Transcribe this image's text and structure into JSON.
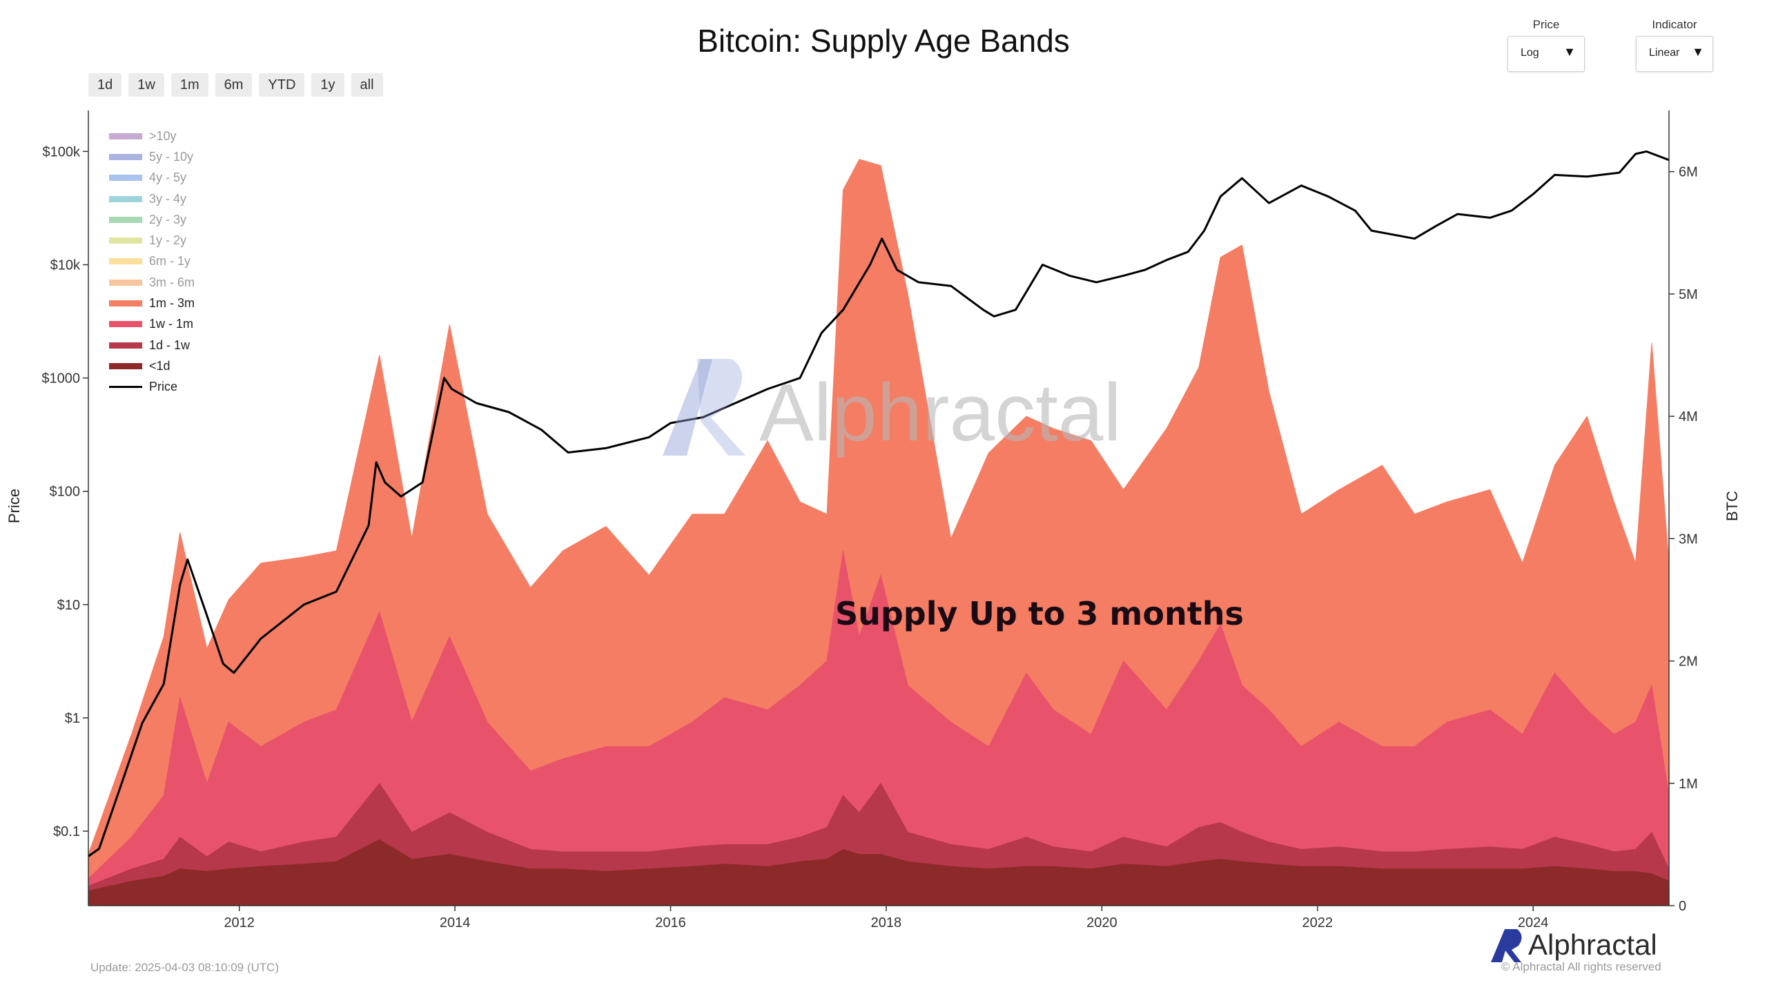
{
  "title": "Bitcoin: Supply Age Bands",
  "range_buttons": [
    "1d",
    "1w",
    "1m",
    "6m",
    "YTD",
    "1y",
    "all"
  ],
  "controls": {
    "price": {
      "label": "Price",
      "value": "Log"
    },
    "indicator": {
      "label": "Indicator",
      "value": "Linear"
    }
  },
  "legend": [
    {
      "label": ">10y",
      "color": "#c8a9d2"
    },
    {
      "label": "5y - 10y",
      "color": "#aab2e0"
    },
    {
      "label": "4y - 5y",
      "color": "#a8c4ee"
    },
    {
      "label": "3y - 4y",
      "color": "#9ed4dc"
    },
    {
      "label": "2y - 3y",
      "color": "#a8d8b4"
    },
    {
      "label": "1y - 2y",
      "color": "#e0e6a0"
    },
    {
      "label": "6m - 1y",
      "color": "#fbdf9a"
    },
    {
      "label": "3m - 6m",
      "color": "#f8c69e"
    },
    {
      "label": "1m - 3m",
      "color": "#f47d63"
    },
    {
      "label": "1w - 1m",
      "color": "#e8536b"
    },
    {
      "label": "1d - 1w",
      "color": "#b8384b"
    },
    {
      "label": "<1d",
      "color": "#8c2a2a"
    },
    {
      "label": "Price",
      "color": "#000000"
    }
  ],
  "annotation": "Supply Up to 3 months",
  "watermark_text": "Alphractal",
  "footer": {
    "update": "Update: 2025-04-03 08:10:09 (UTC)",
    "brand": "Alphractal",
    "copyright": "© Alphractal All rights reserved"
  },
  "chart_data": {
    "type": "area",
    "title": "Bitcoin: Supply Age Bands",
    "xlabel": "",
    "ylabel_left": "Price",
    "ylabel_right": "BTC",
    "x_range": [
      2010.6,
      2025.26
    ],
    "x_ticks": [
      2012,
      2014,
      2016,
      2018,
      2020,
      2022,
      2024
    ],
    "y_right_range": [
      0,
      6500000
    ],
    "y_right_ticks": [
      {
        "value": 0,
        "label": "0"
      },
      {
        "value": 1000000,
        "label": "1M"
      },
      {
        "value": 2000000,
        "label": "2M"
      },
      {
        "value": 3000000,
        "label": "3M"
      },
      {
        "value": 4000000,
        "label": "4M"
      },
      {
        "value": 5000000,
        "label": "5M"
      },
      {
        "value": 6000000,
        "label": "6M"
      }
    ],
    "y_left_scale": "log",
    "y_left_range": [
      0.022,
      230000
    ],
    "y_left_ticks": [
      {
        "value": 0.1,
        "label": "$0.1"
      },
      {
        "value": 1,
        "label": "$1"
      },
      {
        "value": 10,
        "label": "$10"
      },
      {
        "value": 100,
        "label": "$100"
      },
      {
        "value": 1000,
        "label": "$1000"
      },
      {
        "value": 10000,
        "label": "$10k"
      },
      {
        "value": 100000,
        "label": "$100k"
      }
    ],
    "x": [
      2010.6,
      2011.0,
      2011.3,
      2011.45,
      2011.7,
      2011.9,
      2012.2,
      2012.6,
      2012.9,
      2013.3,
      2013.6,
      2013.95,
      2014.3,
      2014.7,
      2015.0,
      2015.4,
      2015.8,
      2016.2,
      2016.5,
      2016.9,
      2017.2,
      2017.45,
      2017.6,
      2017.75,
      2017.95,
      2018.2,
      2018.6,
      2018.95,
      2019.3,
      2019.55,
      2019.9,
      2020.2,
      2020.6,
      2020.9,
      2021.1,
      2021.3,
      2021.55,
      2021.85,
      2022.2,
      2022.6,
      2022.9,
      2023.2,
      2023.6,
      2023.9,
      2024.2,
      2024.5,
      2024.75,
      2024.95,
      2025.1,
      2025.26
    ],
    "series": [
      {
        "name": "<1d",
        "values": [
          120000,
          200000,
          240000,
          300000,
          280000,
          300000,
          320000,
          340000,
          360000,
          540000,
          380000,
          420000,
          360000,
          300000,
          300000,
          280000,
          300000,
          320000,
          340000,
          320000,
          360000,
          380000,
          460000,
          420000,
          420000,
          360000,
          320000,
          300000,
          320000,
          320000,
          300000,
          340000,
          320000,
          360000,
          380000,
          360000,
          340000,
          320000,
          320000,
          300000,
          300000,
          300000,
          300000,
          300000,
          320000,
          300000,
          280000,
          280000,
          260000,
          200000
        ]
      },
      {
        "name": "1d - 1w",
        "values": [
          160000,
          300000,
          380000,
          560000,
          400000,
          520000,
          440000,
          520000,
          560000,
          1000000,
          600000,
          760000,
          600000,
          460000,
          440000,
          440000,
          440000,
          480000,
          500000,
          500000,
          560000,
          640000,
          900000,
          760000,
          1000000,
          600000,
          500000,
          460000,
          560000,
          480000,
          440000,
          560000,
          480000,
          640000,
          680000,
          600000,
          520000,
          460000,
          480000,
          440000,
          440000,
          460000,
          480000,
          460000,
          560000,
          500000,
          440000,
          460000,
          600000,
          300000
        ]
      },
      {
        "name": "1w - 1m",
        "values": [
          220000,
          560000,
          900000,
          1700000,
          1000000,
          1500000,
          1300000,
          1500000,
          1600000,
          2400000,
          1500000,
          2200000,
          1500000,
          1100000,
          1200000,
          1300000,
          1300000,
          1500000,
          1700000,
          1600000,
          1800000,
          2000000,
          2900000,
          2200000,
          2700000,
          1800000,
          1500000,
          1300000,
          1900000,
          1600000,
          1400000,
          2000000,
          1600000,
          2000000,
          2300000,
          1800000,
          1600000,
          1300000,
          1500000,
          1300000,
          1300000,
          1500000,
          1600000,
          1400000,
          1900000,
          1600000,
          1400000,
          1500000,
          1800000,
          900000
        ]
      },
      {
        "name": "1m - 3m",
        "values": [
          420000,
          1400000,
          2200000,
          3050000,
          2100000,
          2500000,
          2800000,
          2850000,
          2900000,
          4500000,
          3000000,
          4750000,
          3200000,
          2600000,
          2900000,
          3100000,
          2700000,
          3200000,
          3200000,
          3800000,
          3300000,
          3200000,
          5850000,
          6100000,
          6050000,
          5000000,
          3000000,
          3700000,
          4000000,
          3900000,
          3800000,
          3400000,
          3900000,
          4400000,
          5300000,
          5400000,
          4200000,
          3200000,
          3400000,
          3600000,
          3200000,
          3300000,
          3400000,
          2800000,
          3600000,
          4000000,
          3300000,
          2800000,
          4600000,
          2800000
        ]
      }
    ],
    "price_series": {
      "name": "Price",
      "x": [
        2010.6,
        2010.7,
        2010.9,
        2011.1,
        2011.3,
        2011.45,
        2011.52,
        2011.7,
        2011.85,
        2011.95,
        2012.2,
        2012.6,
        2012.9,
        2013.2,
        2013.27,
        2013.35,
        2013.5,
        2013.7,
        2013.9,
        2013.97,
        2014.2,
        2014.5,
        2014.8,
        2015.05,
        2015.4,
        2015.8,
        2016.0,
        2016.3,
        2016.6,
        2016.9,
        2017.2,
        2017.4,
        2017.6,
        2017.85,
        2017.96,
        2018.1,
        2018.3,
        2018.6,
        2018.9,
        2019.0,
        2019.2,
        2019.45,
        2019.7,
        2019.95,
        2020.2,
        2020.4,
        2020.6,
        2020.8,
        2020.95,
        2021.1,
        2021.3,
        2021.55,
        2021.85,
        2022.1,
        2022.35,
        2022.5,
        2022.9,
        2023.1,
        2023.3,
        2023.6,
        2023.8,
        2024.0,
        2024.2,
        2024.5,
        2024.8,
        2024.95,
        2025.05,
        2025.26
      ],
      "values": [
        0.06,
        0.07,
        0.25,
        0.9,
        2.0,
        15,
        25,
        8,
        3,
        2.5,
        5,
        10,
        13,
        50,
        180,
        120,
        90,
        120,
        1000,
        800,
        600,
        500,
        350,
        220,
        240,
        300,
        400,
        450,
        600,
        800,
        1000,
        2500,
        4000,
        10000,
        17000,
        9000,
        7000,
        6500,
        4000,
        3500,
        4000,
        10000,
        8000,
        7000,
        8000,
        9000,
        11000,
        13000,
        20000,
        40000,
        58000,
        35000,
        50000,
        40000,
        30000,
        20000,
        17000,
        22000,
        28000,
        26000,
        30000,
        42000,
        62000,
        60000,
        65000,
        95000,
        100000,
        84000
      ]
    },
    "legend_position": "top-left",
    "grid": false
  }
}
